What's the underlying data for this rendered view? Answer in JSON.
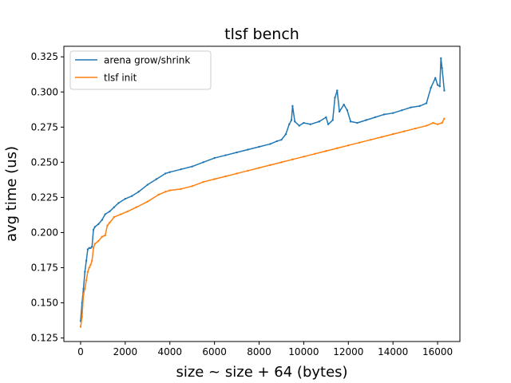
{
  "chart_data": {
    "type": "line",
    "title": "tlsf bench",
    "xlabel": "size ~ size + 64 (bytes)",
    "ylabel": "avg time (us)",
    "xlim": [
      -750,
      17000
    ],
    "ylim": [
      0.1225,
      0.3325
    ],
    "x_ticks": [
      0,
      2000,
      4000,
      6000,
      8000,
      10000,
      12000,
      14000,
      16000
    ],
    "y_ticks": [
      0.125,
      0.15,
      0.175,
      0.2,
      0.225,
      0.25,
      0.275,
      0.3,
      0.325
    ],
    "x_tick_labels": [
      "0",
      "2000",
      "4000",
      "6000",
      "8000",
      "10000",
      "12000",
      "14000",
      "16000"
    ],
    "y_tick_labels": [
      "0.125",
      "0.150",
      "0.175",
      "0.200",
      "0.225",
      "0.250",
      "0.275",
      "0.300",
      "0.325"
    ],
    "grid": false,
    "legend_position": "top-left",
    "series": [
      {
        "name": "arena grow/shrink",
        "color": "#1f77b4",
        "points": [
          [
            0,
            0.137
          ],
          [
            64,
            0.15
          ],
          [
            128,
            0.16
          ],
          [
            192,
            0.172
          ],
          [
            256,
            0.18
          ],
          [
            320,
            0.188
          ],
          [
            384,
            0.189
          ],
          [
            448,
            0.189
          ],
          [
            512,
            0.19
          ],
          [
            576,
            0.202
          ],
          [
            640,
            0.204
          ],
          [
            800,
            0.206
          ],
          [
            960,
            0.209
          ],
          [
            1100,
            0.213
          ],
          [
            1300,
            0.215
          ],
          [
            1500,
            0.218
          ],
          [
            1700,
            0.221
          ],
          [
            2000,
            0.224
          ],
          [
            2300,
            0.226
          ],
          [
            2600,
            0.229
          ],
          [
            3000,
            0.234
          ],
          [
            3400,
            0.238
          ],
          [
            3800,
            0.242
          ],
          [
            4000,
            0.243
          ],
          [
            4500,
            0.245
          ],
          [
            5000,
            0.247
          ],
          [
            5500,
            0.25
          ],
          [
            6000,
            0.253
          ],
          [
            6500,
            0.255
          ],
          [
            7000,
            0.257
          ],
          [
            7500,
            0.259
          ],
          [
            8000,
            0.261
          ],
          [
            8500,
            0.263
          ],
          [
            8800,
            0.265
          ],
          [
            9000,
            0.266
          ],
          [
            9200,
            0.27
          ],
          [
            9350,
            0.277
          ],
          [
            9450,
            0.28
          ],
          [
            9500,
            0.29
          ],
          [
            9600,
            0.279
          ],
          [
            9800,
            0.276
          ],
          [
            10000,
            0.278
          ],
          [
            10300,
            0.277
          ],
          [
            10700,
            0.279
          ],
          [
            11000,
            0.282
          ],
          [
            11100,
            0.277
          ],
          [
            11300,
            0.28
          ],
          [
            11400,
            0.296
          ],
          [
            11500,
            0.301
          ],
          [
            11600,
            0.286
          ],
          [
            11800,
            0.291
          ],
          [
            11950,
            0.287
          ],
          [
            12100,
            0.279
          ],
          [
            12400,
            0.278
          ],
          [
            12800,
            0.28
          ],
          [
            13200,
            0.282
          ],
          [
            13600,
            0.284
          ],
          [
            14000,
            0.285
          ],
          [
            14400,
            0.287
          ],
          [
            14800,
            0.289
          ],
          [
            15200,
            0.29
          ],
          [
            15500,
            0.292
          ],
          [
            15700,
            0.303
          ],
          [
            15900,
            0.31
          ],
          [
            16000,
            0.305
          ],
          [
            16100,
            0.304
          ],
          [
            16150,
            0.324
          ],
          [
            16200,
            0.317
          ],
          [
            16300,
            0.301
          ]
        ]
      },
      {
        "name": "tlsf init",
        "color": "#ff7f0e",
        "points": [
          [
            0,
            0.133
          ],
          [
            64,
            0.14
          ],
          [
            128,
            0.156
          ],
          [
            192,
            0.16
          ],
          [
            256,
            0.166
          ],
          [
            320,
            0.172
          ],
          [
            384,
            0.175
          ],
          [
            448,
            0.177
          ],
          [
            512,
            0.18
          ],
          [
            576,
            0.189
          ],
          [
            640,
            0.192
          ],
          [
            800,
            0.194
          ],
          [
            960,
            0.197
          ],
          [
            1100,
            0.198
          ],
          [
            1200,
            0.205
          ],
          [
            1300,
            0.207
          ],
          [
            1500,
            0.211
          ],
          [
            1800,
            0.213
          ],
          [
            2100,
            0.215
          ],
          [
            2500,
            0.218
          ],
          [
            3000,
            0.222
          ],
          [
            3500,
            0.227
          ],
          [
            3800,
            0.229
          ],
          [
            4000,
            0.23
          ],
          [
            4500,
            0.231
          ],
          [
            5000,
            0.233
          ],
          [
            5500,
            0.236
          ],
          [
            6000,
            0.238
          ],
          [
            6500,
            0.24
          ],
          [
            7000,
            0.242
          ],
          [
            7500,
            0.244
          ],
          [
            8000,
            0.246
          ],
          [
            8500,
            0.248
          ],
          [
            9000,
            0.25
          ],
          [
            9500,
            0.252
          ],
          [
            10000,
            0.254
          ],
          [
            10500,
            0.256
          ],
          [
            11000,
            0.258
          ],
          [
            11500,
            0.26
          ],
          [
            12000,
            0.262
          ],
          [
            12500,
            0.264
          ],
          [
            13000,
            0.266
          ],
          [
            13500,
            0.268
          ],
          [
            14000,
            0.27
          ],
          [
            14500,
            0.272
          ],
          [
            15000,
            0.274
          ],
          [
            15500,
            0.276
          ],
          [
            15800,
            0.278
          ],
          [
            16000,
            0.277
          ],
          [
            16200,
            0.278
          ],
          [
            16300,
            0.281
          ]
        ]
      }
    ]
  }
}
